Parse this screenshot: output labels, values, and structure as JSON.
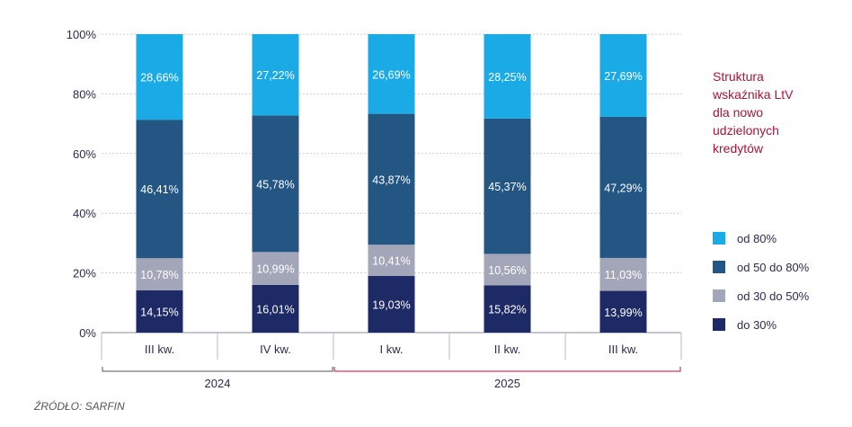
{
  "chart_data": {
    "type": "bar",
    "stacked": true,
    "title_lines": [
      "Struktura",
      "wskaźnika LtV",
      "dla nowo",
      "udzielonych",
      "kredytów"
    ],
    "categories": [
      "III kw.",
      "IV kw.",
      "I kw.",
      "II kw.",
      "III kw."
    ],
    "category_years": [
      "2024",
      "2024",
      "2025",
      "2025",
      "2025"
    ],
    "year_groups": [
      {
        "label": "2024",
        "color": "#555555"
      },
      {
        "label": "2025",
        "color": "#a8163a"
      }
    ],
    "ylim": [
      0,
      100
    ],
    "yticks": [
      "0%",
      "20%",
      "40%",
      "60%",
      "80%",
      "100%"
    ],
    "series": [
      {
        "name": "do 30%",
        "color": "#1e2a66",
        "values": [
          14.15,
          16.01,
          19.03,
          15.82,
          13.99
        ],
        "labels": [
          "14,15%",
          "16,01%",
          "19,03%",
          "15,82%",
          "13,99%"
        ]
      },
      {
        "name": "od 30 do 50%",
        "color": "#a3a6b8",
        "values": [
          10.78,
          10.99,
          10.41,
          10.56,
          11.03
        ],
        "labels": [
          "10,78%",
          "10,99%",
          "10,41%",
          "10,56%",
          "11,03%"
        ]
      },
      {
        "name": "od 50 do 80%",
        "color": "#235683",
        "values": [
          46.41,
          45.78,
          43.87,
          45.37,
          47.29
        ],
        "labels": [
          "46,41%",
          "45,78%",
          "43,87%",
          "45,37%",
          "47,29%"
        ]
      },
      {
        "name": "od 80%",
        "color": "#1aabe6",
        "values": [
          28.66,
          27.22,
          26.69,
          28.25,
          27.69
        ],
        "labels": [
          "28,66%",
          "27,22%",
          "26,69%",
          "28,25%",
          "27,69%"
        ]
      }
    ],
    "legend_order": [
      "od 80%",
      "od 50 do 80%",
      "od 30 do 50%",
      "do 30%"
    ],
    "title_color": "#a8163a",
    "grid_color": "#c8cad6",
    "text_color": "#2b2b4a"
  },
  "source": "ŹRÓDŁO: SARFIN"
}
